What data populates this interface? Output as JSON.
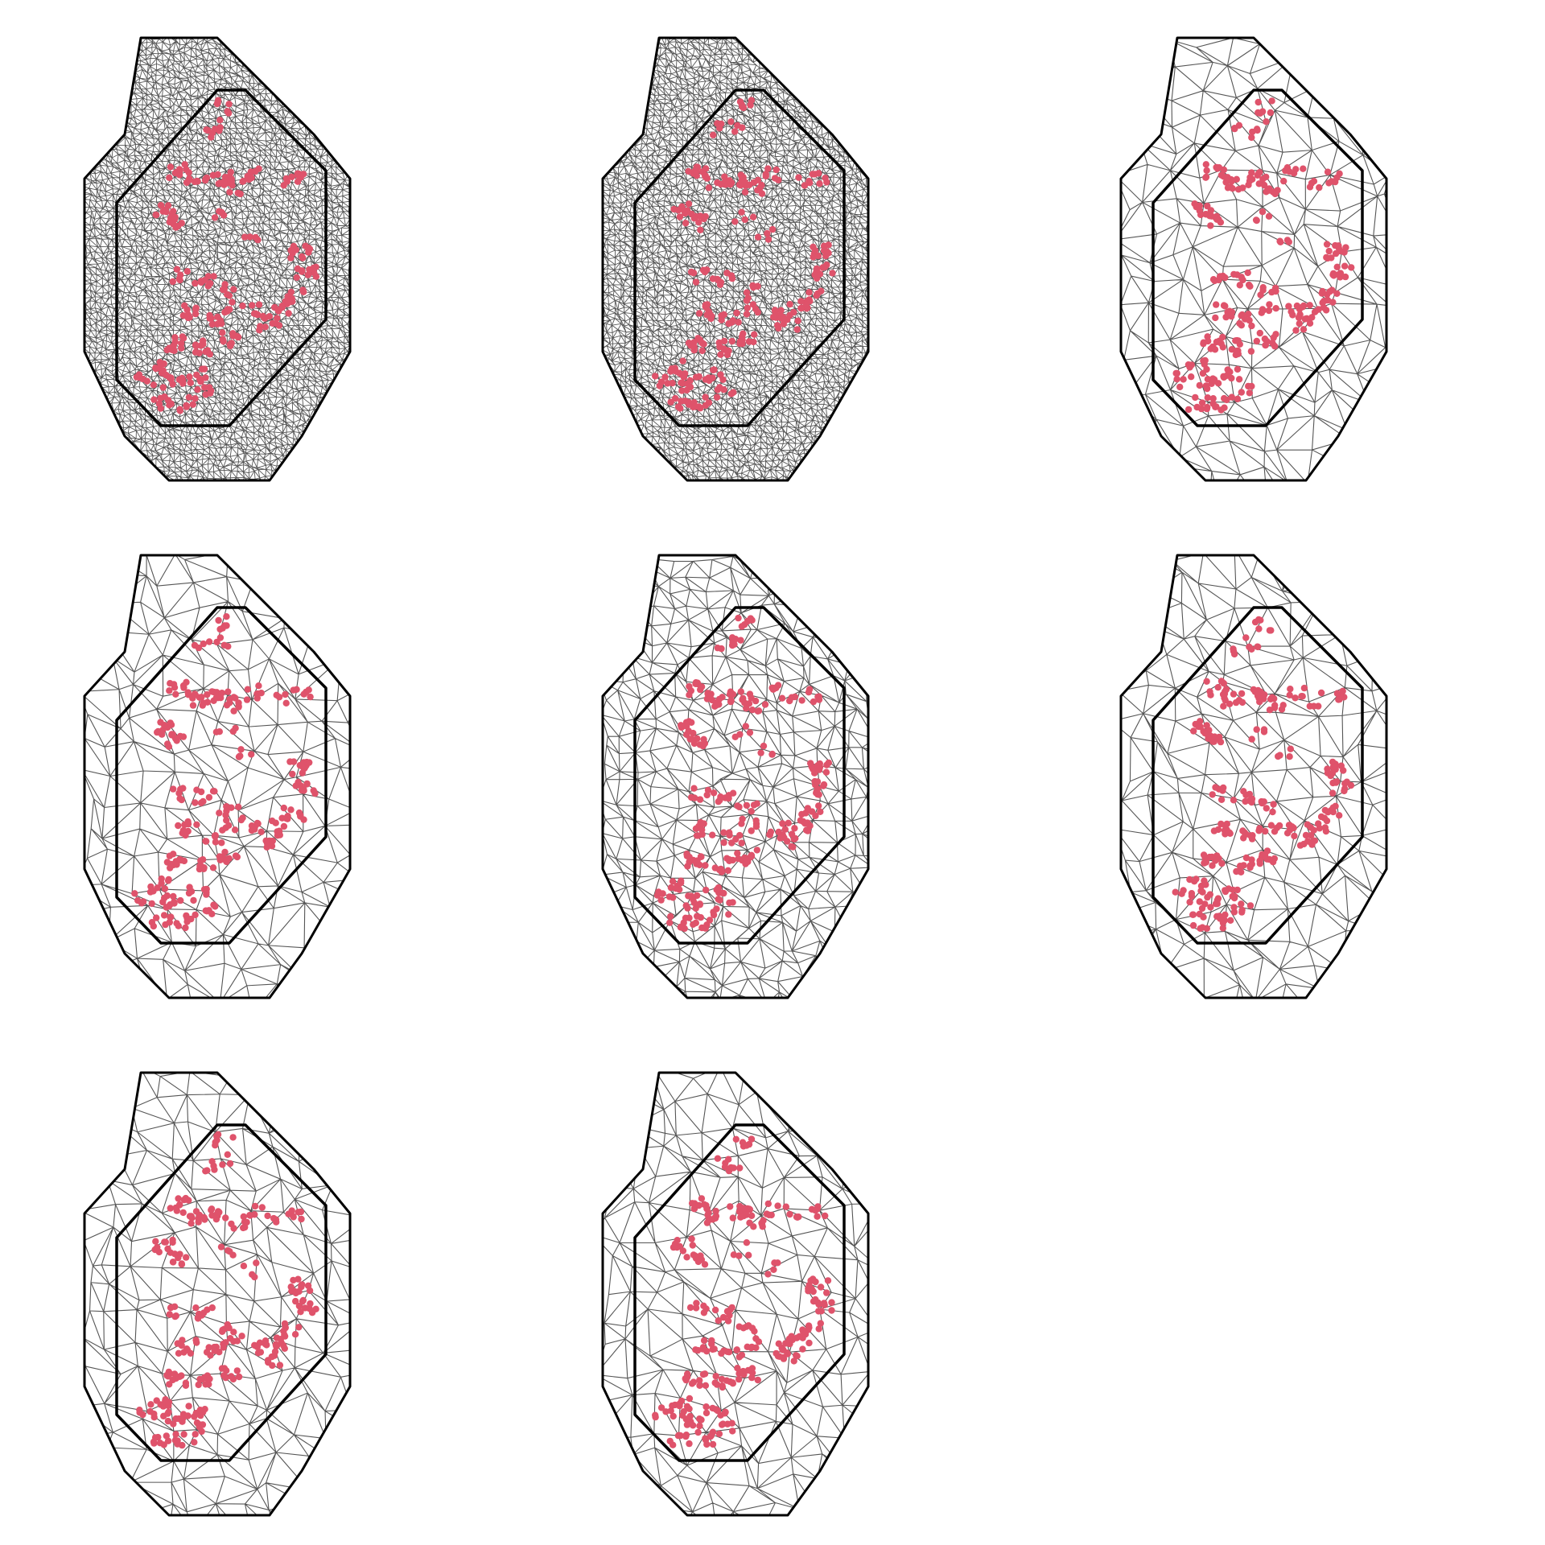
{
  "figure": {
    "background": "#ffffff",
    "panel_count": 8,
    "grid": {
      "rows": 3,
      "cols": 3
    },
    "colors": {
      "boundary": "#000000",
      "mesh_edge": "#555555",
      "data_point": "#df536b"
    },
    "panels": [
      {
        "id": 1,
        "mesh_density": "very-fine",
        "mesh_seed": 11
      },
      {
        "id": 2,
        "mesh_density": "very-fine",
        "mesh_seed": 23
      },
      {
        "id": 3,
        "mesh_density": "coarse",
        "mesh_seed": 37
      },
      {
        "id": 4,
        "mesh_density": "coarse",
        "mesh_seed": 41
      },
      {
        "id": 5,
        "mesh_density": "medium",
        "mesh_seed": 53
      },
      {
        "id": 6,
        "mesh_density": "coarse",
        "mesh_seed": 67
      },
      {
        "id": 7,
        "mesh_density": "coarse",
        "mesh_seed": 71
      },
      {
        "id": 8,
        "mesh_density": "coarse",
        "mesh_seed": 89
      }
    ]
  }
}
